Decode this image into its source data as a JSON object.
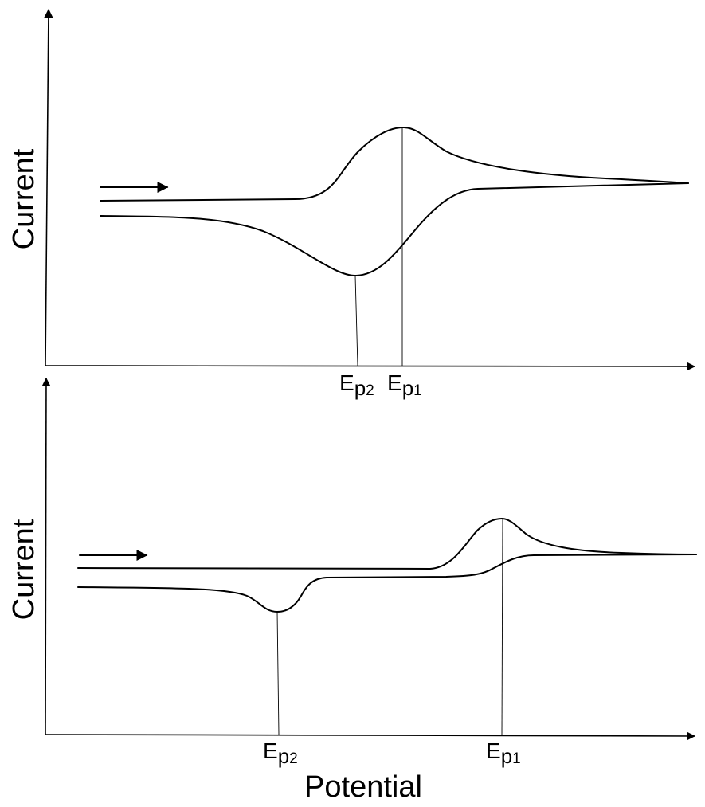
{
  "chart_data": [
    {
      "type": "line",
      "title": "",
      "ylabel": "Current",
      "xlabel": "",
      "scan_direction": "right",
      "peaks": [
        {
          "label": "E",
          "sub": "p",
          "num": "2"
        },
        {
          "label": "E",
          "sub": "p",
          "num": "1"
        }
      ]
    },
    {
      "type": "line",
      "title": "",
      "ylabel": "Current",
      "xlabel": "Potential",
      "scan_direction": "right",
      "peaks": [
        {
          "label": "E",
          "sub": "p",
          "num": "2"
        },
        {
          "label": "E",
          "sub": "p",
          "num": "1"
        }
      ]
    }
  ]
}
